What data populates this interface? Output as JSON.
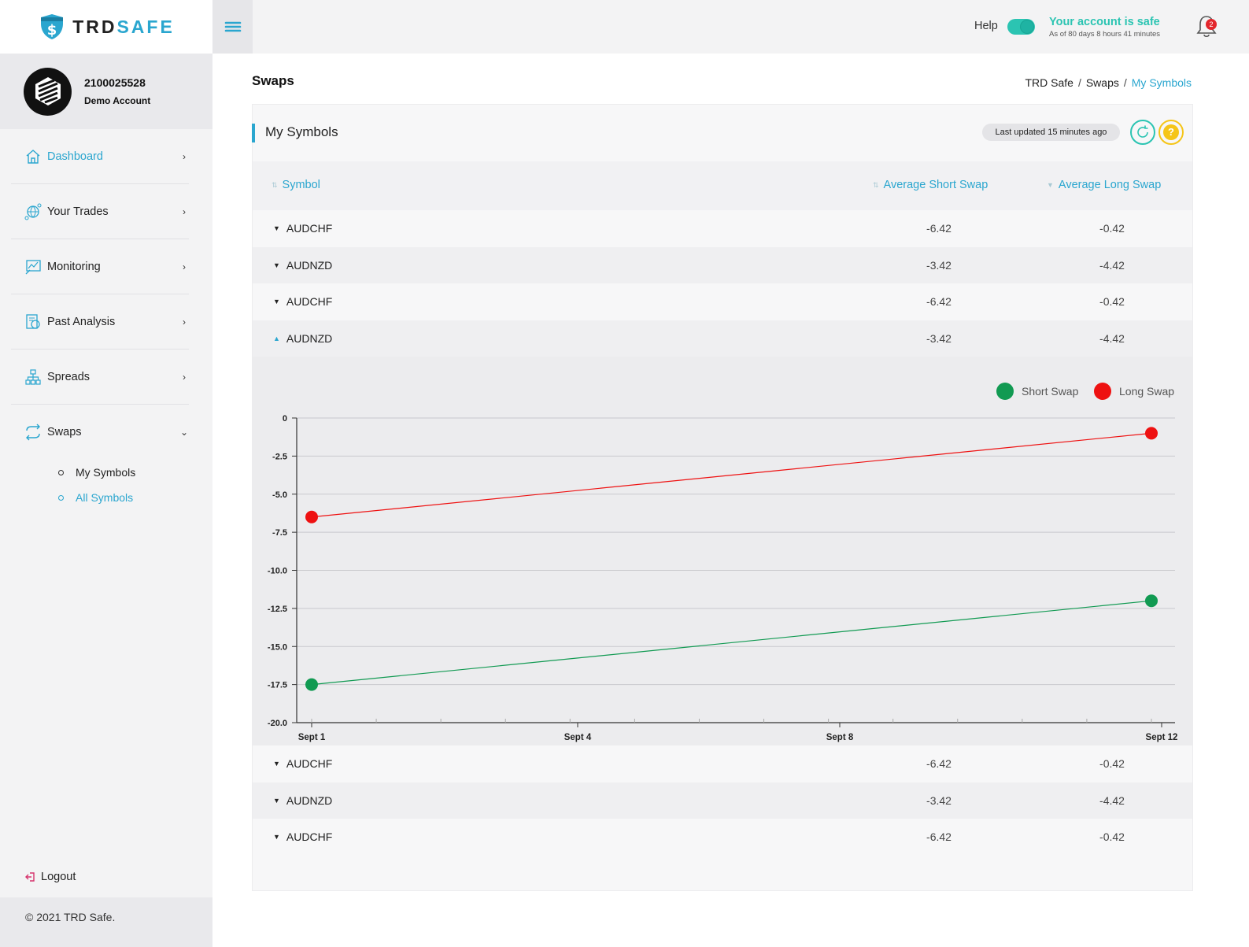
{
  "brand": {
    "prefix": "TRD",
    "suffix": "SAFE"
  },
  "account": {
    "id": "2100025528",
    "type": "Demo Account"
  },
  "sidebar": {
    "items": [
      {
        "label": "Dashboard",
        "icon": "house-icon",
        "active": true
      },
      {
        "label": "Your Trades",
        "icon": "globe-network-icon",
        "active": false
      },
      {
        "label": "Monitoring",
        "icon": "monitor-chart-icon",
        "active": false
      },
      {
        "label": "Past Analysis",
        "icon": "analysis-icon",
        "active": false
      },
      {
        "label": "Spreads",
        "icon": "hierarchy-icon",
        "active": false
      },
      {
        "label": "Swaps",
        "icon": "swap-arrows-icon",
        "active": false,
        "expanded": true
      }
    ],
    "sub_items": [
      {
        "label": "My Symbols",
        "active": false
      },
      {
        "label": "All Symbols",
        "active": true
      }
    ],
    "logout": "Logout",
    "footer": "© 2021 TRD Safe."
  },
  "topbar": {
    "help_label": "Help",
    "help_toggle_on": true,
    "safe_title": "Your account is safe",
    "safe_sub": "As of 80 days 8 hours 41 minutes",
    "notification_count": "2"
  },
  "page": {
    "title": "Swaps",
    "breadcrumb": [
      "TRD Safe",
      "Swaps",
      "My Symbols"
    ]
  },
  "card": {
    "title": "My Symbols",
    "updated": "Last updated 15 minutes ago",
    "columns": [
      "Symbol",
      "Average Short Swap",
      "Average Long Swap"
    ],
    "rows_top": [
      {
        "symbol": "AUDCHF",
        "short": "-6.42",
        "long": "-0.42"
      },
      {
        "symbol": "AUDNZD",
        "short": "-3.42",
        "long": "-4.42"
      },
      {
        "symbol": "AUDCHF",
        "short": "-6.42",
        "long": "-0.42"
      },
      {
        "symbol": "AUDNZD",
        "short": "-3.42",
        "long": "-4.42",
        "expanded": true
      }
    ],
    "rows_bottom": [
      {
        "symbol": "AUDCHF",
        "short": "-6.42",
        "long": "-0.42"
      },
      {
        "symbol": "AUDNZD",
        "short": "-3.42",
        "long": "-4.42"
      },
      {
        "symbol": "AUDCHF",
        "short": "-6.42",
        "long": "-0.42"
      }
    ]
  },
  "colors": {
    "accent": "#2aa6cf",
    "teal": "#2bc4b2",
    "short": "#119a52",
    "long": "#ee1111",
    "help": "#f5c518"
  },
  "chart_data": {
    "type": "line",
    "x": [
      "Sept 1",
      "Sept 12"
    ],
    "x_ticks": [
      "Sept 1",
      "Sept 4",
      "Sept 8",
      "Sept 12"
    ],
    "series": [
      {
        "name": "Short Swap",
        "color": "#119a52",
        "values": [
          -17.5,
          -12.0
        ]
      },
      {
        "name": "Long Swap",
        "color": "#ee1111",
        "values": [
          -6.5,
          -1.0
        ]
      }
    ],
    "ylim": [
      -20.0,
      0
    ],
    "y_ticks": [
      "0",
      "-2.5",
      "-5.0",
      "-7.5",
      "-10.0",
      "-12.5",
      "-15.0",
      "-17.5",
      "-20.0"
    ],
    "grid": true,
    "legend": "top-right"
  }
}
